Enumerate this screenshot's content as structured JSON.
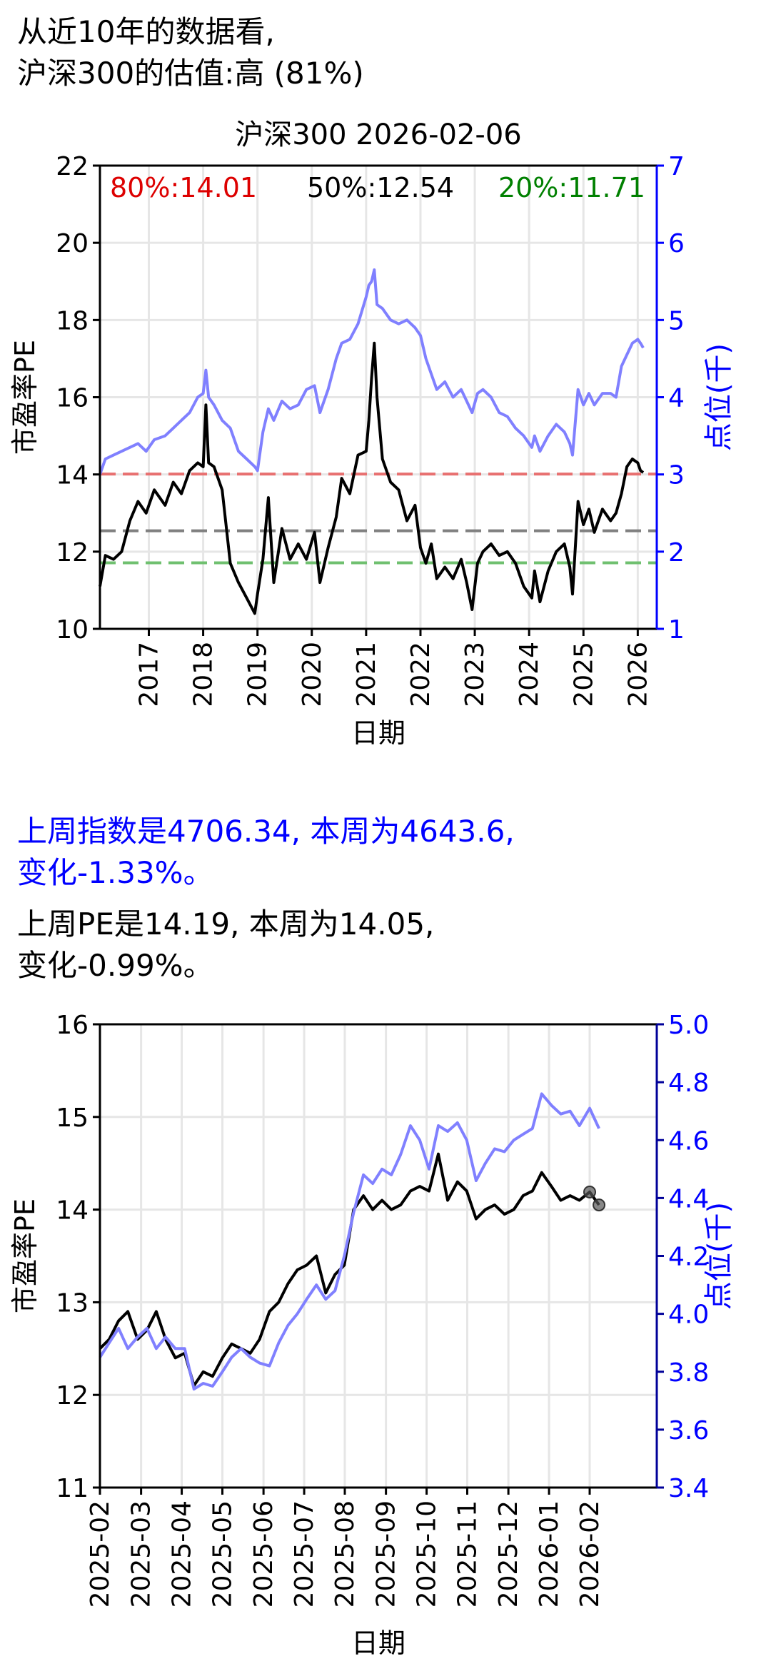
{
  "header": {
    "line1": "从近10年的数据看,",
    "line2": "沪深300的估值:高 (81%)"
  },
  "summary": {
    "index_line1": "上周指数是4706.34, 本周为4643.6,",
    "index_line2": "变化-1.33%。",
    "pe_line1": "上周PE是14.19, 本周为14.05,",
    "pe_line2": "变化-0.99%。"
  },
  "colors": {
    "pe": "#000000",
    "index": "#8080ff",
    "p80": "#e87070",
    "p50": "#808080",
    "p20": "#70c070",
    "right_axis": "#0000ff",
    "right_axis_dark": "#000099"
  },
  "chart_data": [
    {
      "type": "line",
      "title": "沪深300 2026-02-06",
      "xlabel": "日期",
      "ylabel": "市盈率PE",
      "y2label": "点位(千)",
      "xlim": [
        2016.1,
        2026.35
      ],
      "ylim": [
        10,
        22
      ],
      "y2lim": [
        1,
        7
      ],
      "xticks": [
        2017,
        2018,
        2019,
        2020,
        2021,
        2022,
        2023,
        2024,
        2025,
        2026
      ],
      "xtick_labels": [
        "2017",
        "2018",
        "2019",
        "2020",
        "2021",
        "2022",
        "2023",
        "2024",
        "2025",
        "2026"
      ],
      "yticks": [
        10,
        12,
        14,
        16,
        18,
        20,
        22
      ],
      "ytick_labels": [
        "10",
        "12",
        "14",
        "16",
        "18",
        "20",
        "22"
      ],
      "y2ticks": [
        1,
        2,
        3,
        4,
        5,
        6,
        7
      ],
      "y2tick_labels": [
        "1",
        "2",
        "3",
        "4",
        "5",
        "6",
        "7"
      ],
      "grid": true,
      "reference_lines": [
        {
          "label": "80%:14.01",
          "value": 14.01,
          "color": "#e87070",
          "text_color": "#dd0000"
        },
        {
          "label": "50%:12.54",
          "value": 12.54,
          "color": "#808080",
          "text_color": "#000000"
        },
        {
          "label": "20%:11.71",
          "value": 11.71,
          "color": "#70c070",
          "text_color": "#008000"
        }
      ],
      "series": [
        {
          "axis": "left",
          "x": [
            2016.1,
            2016.2,
            2016.35,
            2016.5,
            2016.65,
            2016.8,
            2016.95,
            2017.1,
            2017.3,
            2017.45,
            2017.6,
            2017.75,
            2017.9,
            2018.0,
            2018.05,
            2018.1,
            2018.2,
            2018.35,
            2018.5,
            2018.65,
            2018.8,
            2018.95,
            2019.0,
            2019.1,
            2019.2,
            2019.3,
            2019.45,
            2019.6,
            2019.75,
            2019.9,
            2020.05,
            2020.15,
            2020.3,
            2020.45,
            2020.55,
            2020.7,
            2020.85,
            2021.0,
            2021.05,
            2021.1,
            2021.15,
            2021.2,
            2021.3,
            2021.45,
            2021.6,
            2021.75,
            2021.9,
            2022.0,
            2022.1,
            2022.2,
            2022.3,
            2022.45,
            2022.6,
            2022.75,
            2022.85,
            2022.95,
            2023.05,
            2023.15,
            2023.3,
            2023.45,
            2023.6,
            2023.75,
            2023.9,
            2024.05,
            2024.1,
            2024.2,
            2024.35,
            2024.5,
            2024.65,
            2024.75,
            2024.8,
            2024.9,
            2025.0,
            2025.1,
            2025.2,
            2025.35,
            2025.5,
            2025.6,
            2025.7,
            2025.8,
            2025.9,
            2026.0,
            2026.05,
            2026.1
          ],
          "y": [
            11.1,
            11.9,
            11.8,
            12.0,
            12.8,
            13.3,
            13.0,
            13.6,
            13.2,
            13.8,
            13.5,
            14.1,
            14.3,
            14.2,
            15.8,
            14.3,
            14.2,
            13.6,
            11.7,
            11.2,
            10.8,
            10.4,
            10.9,
            11.8,
            13.4,
            11.2,
            12.6,
            11.8,
            12.2,
            11.8,
            12.5,
            11.2,
            12.1,
            12.9,
            13.9,
            13.5,
            14.5,
            14.6,
            15.4,
            16.5,
            17.4,
            16.0,
            14.4,
            13.8,
            13.6,
            12.8,
            13.2,
            12.1,
            11.7,
            12.2,
            11.3,
            11.6,
            11.3,
            11.8,
            11.2,
            10.5,
            11.7,
            12.0,
            12.2,
            11.9,
            12.0,
            11.7,
            11.1,
            10.8,
            11.5,
            10.7,
            11.5,
            12.0,
            12.2,
            11.6,
            10.9,
            13.3,
            12.7,
            13.1,
            12.5,
            13.1,
            12.8,
            13.0,
            13.5,
            14.2,
            14.4,
            14.3,
            14.1,
            14.05
          ]
        },
        {
          "axis": "right",
          "x": [
            2016.1,
            2016.2,
            2016.35,
            2016.5,
            2016.65,
            2016.8,
            2016.95,
            2017.1,
            2017.3,
            2017.45,
            2017.6,
            2017.75,
            2017.9,
            2018.0,
            2018.05,
            2018.1,
            2018.2,
            2018.35,
            2018.5,
            2018.65,
            2018.8,
            2018.95,
            2019.0,
            2019.1,
            2019.2,
            2019.3,
            2019.45,
            2019.6,
            2019.75,
            2019.9,
            2020.05,
            2020.15,
            2020.3,
            2020.45,
            2020.55,
            2020.7,
            2020.85,
            2021.0,
            2021.05,
            2021.1,
            2021.15,
            2021.2,
            2021.3,
            2021.45,
            2021.6,
            2021.75,
            2021.9,
            2022.0,
            2022.1,
            2022.2,
            2022.3,
            2022.45,
            2022.6,
            2022.75,
            2022.85,
            2022.95,
            2023.05,
            2023.15,
            2023.3,
            2023.45,
            2023.6,
            2023.75,
            2023.9,
            2024.05,
            2024.1,
            2024.2,
            2024.35,
            2024.5,
            2024.65,
            2024.75,
            2024.8,
            2024.9,
            2025.0,
            2025.1,
            2025.2,
            2025.35,
            2025.5,
            2025.6,
            2025.7,
            2025.8,
            2025.9,
            2026.0,
            2026.05,
            2026.1
          ],
          "y": [
            3.0,
            3.2,
            3.25,
            3.3,
            3.35,
            3.4,
            3.3,
            3.45,
            3.5,
            3.6,
            3.7,
            3.8,
            4.0,
            4.05,
            4.35,
            4.0,
            3.9,
            3.7,
            3.6,
            3.3,
            3.2,
            3.1,
            3.05,
            3.55,
            3.85,
            3.7,
            3.95,
            3.85,
            3.9,
            4.1,
            4.15,
            3.8,
            4.1,
            4.5,
            4.7,
            4.75,
            4.95,
            5.3,
            5.45,
            5.5,
            5.65,
            5.2,
            5.15,
            5.0,
            4.95,
            5.0,
            4.9,
            4.8,
            4.5,
            4.3,
            4.1,
            4.2,
            4.0,
            4.1,
            3.95,
            3.8,
            4.05,
            4.1,
            4.0,
            3.8,
            3.75,
            3.6,
            3.5,
            3.35,
            3.5,
            3.3,
            3.5,
            3.65,
            3.55,
            3.4,
            3.25,
            4.1,
            3.9,
            4.05,
            3.9,
            4.05,
            4.05,
            4.0,
            4.4,
            4.55,
            4.7,
            4.75,
            4.7,
            4.64
          ]
        }
      ]
    },
    {
      "type": "line",
      "xlabel": "日期",
      "ylabel": "市盈率PE",
      "y2label": "点位(千)",
      "xlim": [
        2025.083,
        2026.22
      ],
      "ylim": [
        11,
        16
      ],
      "y2lim": [
        3.4,
        5.0
      ],
      "xticks": [
        2025.083,
        2025.167,
        2025.25,
        2025.333,
        2025.417,
        2025.5,
        2025.583,
        2025.667,
        2025.75,
        2025.833,
        2025.917,
        2026.0,
        2026.083
      ],
      "xtick_labels": [
        "2025-02",
        "2025-03",
        "2025-04",
        "2025-05",
        "2025-06",
        "2025-07",
        "2025-08",
        "2025-09",
        "2025-10",
        "2025-11",
        "2025-12",
        "2026-01",
        "2026-02"
      ],
      "yticks": [
        11,
        12,
        13,
        14,
        15,
        16
      ],
      "ytick_labels": [
        "11",
        "12",
        "13",
        "14",
        "15",
        "16"
      ],
      "y2ticks": [
        3.4,
        3.6,
        3.8,
        4.0,
        4.2,
        4.4,
        4.6,
        4.8,
        5.0
      ],
      "y2tick_labels": [
        "3.4",
        "3.6",
        "3.8",
        "4.0",
        "4.2",
        "4.4",
        "4.6",
        "4.8",
        "5.0"
      ],
      "grid": true,
      "markers": [
        {
          "x": 2026.083,
          "y": 14.19
        },
        {
          "x": 2026.102,
          "y": 14.05
        }
      ],
      "series": [
        {
          "axis": "left",
          "x": [
            2025.083,
            2025.102,
            2025.121,
            2025.14,
            2025.16,
            2025.179,
            2025.198,
            2025.217,
            2025.237,
            2025.256,
            2025.275,
            2025.294,
            2025.313,
            2025.333,
            2025.352,
            2025.371,
            2025.39,
            2025.409,
            2025.429,
            2025.448,
            2025.467,
            2025.486,
            2025.505,
            2025.525,
            2025.544,
            2025.563,
            2025.582,
            2025.601,
            2025.621,
            2025.64,
            2025.659,
            2025.678,
            2025.697,
            2025.717,
            2025.736,
            2025.755,
            2025.774,
            2025.793,
            2025.813,
            2025.832,
            2025.851,
            2025.87,
            2025.889,
            2025.909,
            2025.928,
            2025.947,
            2025.966,
            2025.985,
            2026.005,
            2026.024,
            2026.043,
            2026.062,
            2026.083,
            2026.102
          ],
          "y": [
            12.5,
            12.6,
            12.8,
            12.9,
            12.6,
            12.7,
            12.9,
            12.6,
            12.4,
            12.45,
            12.1,
            12.25,
            12.2,
            12.4,
            12.55,
            12.5,
            12.45,
            12.6,
            12.9,
            13.0,
            13.2,
            13.35,
            13.4,
            13.5,
            13.1,
            13.3,
            13.4,
            14.0,
            14.15,
            14.0,
            14.1,
            14.0,
            14.05,
            14.2,
            14.25,
            14.2,
            14.6,
            14.1,
            14.3,
            14.2,
            13.9,
            14.0,
            14.05,
            13.95,
            14.0,
            14.15,
            14.2,
            14.4,
            14.25,
            14.1,
            14.15,
            14.1,
            14.19,
            14.05
          ]
        },
        {
          "axis": "right",
          "x": [
            2025.083,
            2025.102,
            2025.121,
            2025.14,
            2025.16,
            2025.179,
            2025.198,
            2025.217,
            2025.237,
            2025.256,
            2025.275,
            2025.294,
            2025.313,
            2025.333,
            2025.352,
            2025.371,
            2025.39,
            2025.409,
            2025.429,
            2025.448,
            2025.467,
            2025.486,
            2025.505,
            2025.525,
            2025.544,
            2025.563,
            2025.582,
            2025.601,
            2025.621,
            2025.64,
            2025.659,
            2025.678,
            2025.697,
            2025.717,
            2025.736,
            2025.755,
            2025.774,
            2025.793,
            2025.813,
            2025.832,
            2025.851,
            2025.87,
            2025.889,
            2025.909,
            2025.928,
            2025.947,
            2025.966,
            2025.985,
            2026.005,
            2026.024,
            2026.043,
            2026.062,
            2026.083,
            2026.102
          ],
          "y": [
            3.85,
            3.9,
            3.95,
            3.88,
            3.92,
            3.95,
            3.88,
            3.92,
            3.88,
            3.88,
            3.74,
            3.76,
            3.75,
            3.8,
            3.85,
            3.88,
            3.85,
            3.83,
            3.82,
            3.9,
            3.96,
            4.0,
            4.05,
            4.1,
            4.05,
            4.08,
            4.2,
            4.35,
            4.48,
            4.45,
            4.5,
            4.48,
            4.55,
            4.65,
            4.6,
            4.5,
            4.65,
            4.63,
            4.66,
            4.6,
            4.46,
            4.52,
            4.57,
            4.56,
            4.6,
            4.62,
            4.64,
            4.76,
            4.72,
            4.69,
            4.7,
            4.65,
            4.71,
            4.64
          ]
        }
      ]
    }
  ]
}
